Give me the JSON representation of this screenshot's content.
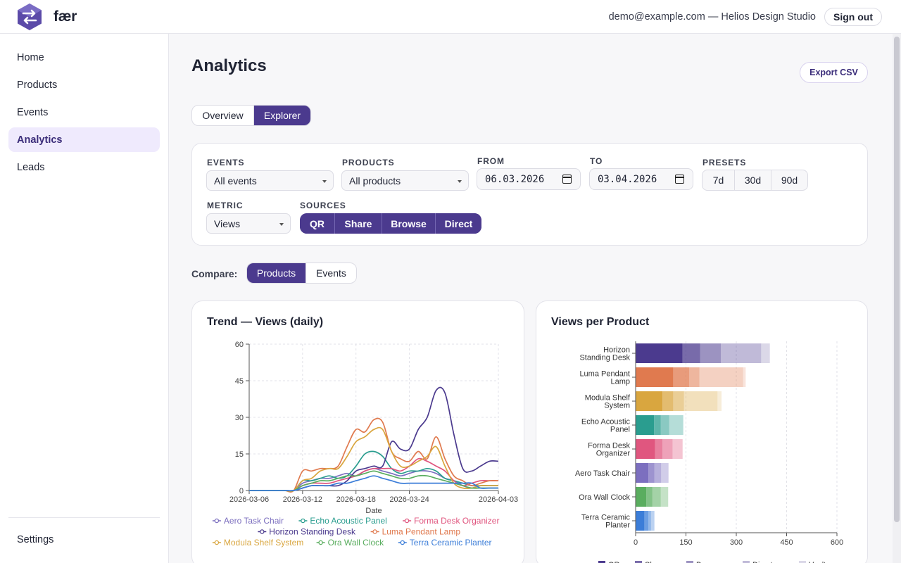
{
  "app": {
    "brand": "fær",
    "user": "demo@example.com — Helios Design Studio",
    "signout": "Sign out"
  },
  "sidebar": {
    "items": [
      {
        "label": "Home"
      },
      {
        "label": "Products"
      },
      {
        "label": "Events"
      },
      {
        "label": "Analytics",
        "active": true
      },
      {
        "label": "Leads"
      }
    ],
    "settings": "Settings"
  },
  "page": {
    "title": "Analytics",
    "export_label": "Export CSV",
    "view_tabs": [
      "Overview",
      "Explorer"
    ],
    "active_view": "Explorer"
  },
  "filters": {
    "events": {
      "label": "EVENTS",
      "value": "All events"
    },
    "products": {
      "label": "PRODUCTS",
      "value": "All products"
    },
    "from": {
      "label": "FROM",
      "value": "06.03.2026"
    },
    "to": {
      "label": "TO",
      "value": "03.04.2026"
    },
    "presets": {
      "label": "PRESETS",
      "options": [
        "7d",
        "30d",
        "90d"
      ]
    },
    "metric": {
      "label": "METRIC",
      "value": "Views"
    },
    "sources": {
      "label": "SOURCES",
      "options": [
        "QR",
        "Share",
        "Browse",
        "Direct"
      ]
    }
  },
  "compare": {
    "label": "Compare:",
    "options": [
      "Products",
      "Events"
    ],
    "active": "Products"
  },
  "colors": {
    "accent": "#4b3a8e",
    "accent_soft": "#efeafd"
  },
  "chart_data": [
    {
      "type": "line",
      "title": "Trend — Views (daily)",
      "xlabel": "Date",
      "ylabel": "",
      "ylim": [
        0,
        60
      ],
      "yticks": [
        0,
        15,
        30,
        45,
        60
      ],
      "x": [
        "2026-03-06",
        "2026-03-07",
        "2026-03-08",
        "2026-03-09",
        "2026-03-10",
        "2026-03-11",
        "2026-03-12",
        "2026-03-13",
        "2026-03-14",
        "2026-03-15",
        "2026-03-16",
        "2026-03-17",
        "2026-03-18",
        "2026-03-19",
        "2026-03-20",
        "2026-03-21",
        "2026-03-22",
        "2026-03-23",
        "2026-03-24",
        "2026-03-25",
        "2026-03-26",
        "2026-03-27",
        "2026-03-28",
        "2026-03-29",
        "2026-03-30",
        "2026-03-31",
        "2026-04-01",
        "2026-04-02",
        "2026-04-03"
      ],
      "xticks": [
        "2026-03-06",
        "2026-03-12",
        "2026-03-18",
        "2026-03-24",
        "2026-04-03"
      ],
      "series": [
        {
          "name": "Aero Task Chair",
          "color": "#7c6fbf",
          "values": [
            0,
            0,
            0,
            0,
            0,
            0,
            3,
            4,
            5,
            5,
            6,
            7,
            6,
            8,
            9,
            8,
            7,
            6,
            7,
            8,
            8,
            7,
            5,
            4,
            2,
            1,
            2,
            2,
            2
          ]
        },
        {
          "name": "Echo Acoustic Panel",
          "color": "#2a9d8f",
          "values": [
            0,
            0,
            0,
            0,
            0,
            0,
            4,
            4,
            5,
            6,
            5,
            6,
            10,
            15,
            16,
            14,
            9,
            7,
            8,
            8,
            9,
            8,
            5,
            4,
            3,
            2,
            2,
            2,
            2
          ]
        },
        {
          "name": "Forma Desk Organizer",
          "color": "#e0567f",
          "values": [
            0,
            0,
            0,
            0,
            0,
            0,
            2,
            3,
            3,
            3,
            4,
            5,
            6,
            8,
            9,
            9,
            9,
            8,
            10,
            13,
            12,
            10,
            8,
            4,
            2,
            3,
            4,
            4,
            4
          ]
        },
        {
          "name": "Horizon Standing Desk",
          "color": "#4b3a8e",
          "values": [
            0,
            0,
            0,
            0,
            0,
            0,
            1,
            2,
            2,
            2,
            2,
            4,
            8,
            9,
            10,
            10,
            20,
            17,
            17,
            25,
            30,
            41,
            40,
            23,
            9,
            8,
            10,
            12,
            12
          ]
        },
        {
          "name": "Luma Pendant Lamp",
          "color": "#e07a4f",
          "values": [
            0,
            0,
            0,
            0,
            0,
            0,
            8,
            8,
            9,
            9,
            10,
            18,
            25,
            24,
            29,
            28,
            16,
            13,
            12,
            16,
            13,
            22,
            13,
            6,
            4,
            2,
            3,
            4,
            4
          ]
        },
        {
          "name": "Modula Shelf System",
          "color": "#d9a63f",
          "values": [
            0,
            0,
            0,
            0,
            0,
            0,
            4,
            5,
            8,
            9,
            9,
            14,
            20,
            22,
            25,
            25,
            16,
            10,
            10,
            12,
            14,
            18,
            10,
            3,
            1,
            1,
            2,
            2,
            2
          ]
        },
        {
          "name": "Ora Wall Clock",
          "color": "#5aad5f",
          "values": [
            0,
            0,
            0,
            0,
            0,
            0,
            2,
            3,
            4,
            4,
            5,
            6,
            6,
            7,
            8,
            7,
            6,
            5,
            5,
            6,
            6,
            5,
            4,
            3,
            2,
            1,
            1,
            1,
            1
          ]
        },
        {
          "name": "Terra Ceramic Planter",
          "color": "#3b7dd8",
          "values": [
            0,
            0,
            0,
            0,
            0,
            0,
            1,
            2,
            2,
            2,
            3,
            3,
            4,
            5,
            6,
            5,
            4,
            3,
            3,
            3,
            3,
            3,
            3,
            3,
            3,
            3,
            1,
            1,
            1
          ]
        }
      ]
    },
    {
      "type": "bar",
      "orientation": "horizontal",
      "stacked": true,
      "title": "Views per Product",
      "xlim": [
        0,
        600
      ],
      "xticks": [
        0,
        150,
        300,
        450,
        600
      ],
      "categories": [
        "Horizon Standing Desk",
        "Luma Pendant Lamp",
        "Modula Shelf System",
        "Echo Acoustic Panel",
        "Forma Desk Organizer",
        "Aero Task Chair",
        "Ora Wall Clock",
        "Terra Ceramic Planter"
      ],
      "category_labels": [
        [
          "Horizon",
          "Standing Desk"
        ],
        [
          "Luma Pendant",
          "Lamp"
        ],
        [
          "Modula Shelf",
          "System"
        ],
        [
          "Echo Acoustic",
          "Panel"
        ],
        [
          "Forma Desk",
          "Organizer"
        ],
        [
          "Aero Task Chair"
        ],
        [
          "Ora Wall Clock"
        ],
        [
          "Terra Ceramic",
          "Planter"
        ]
      ],
      "colors": [
        "#4b3a8e",
        "#e07a4f",
        "#d9a63f",
        "#2a9d8f",
        "#e0567f",
        "#7c6fbf",
        "#5aad5f",
        "#3b7dd8"
      ],
      "series": [
        {
          "name": "QR",
          "values": [
            140,
            112,
            80,
            55,
            58,
            38,
            32,
            26
          ]
        },
        {
          "name": "Share",
          "values": [
            52,
            48,
            32,
            20,
            22,
            18,
            18,
            12
          ]
        },
        {
          "name": "Browse",
          "values": [
            62,
            30,
            32,
            25,
            30,
            20,
            25,
            8
          ]
        },
        {
          "name": "Direct",
          "values": [
            120,
            130,
            100,
            42,
            30,
            22,
            22,
            10
          ]
        },
        {
          "name": "Vault",
          "values": [
            26,
            8,
            12,
            0,
            0,
            0,
            0,
            0
          ]
        }
      ]
    }
  ]
}
